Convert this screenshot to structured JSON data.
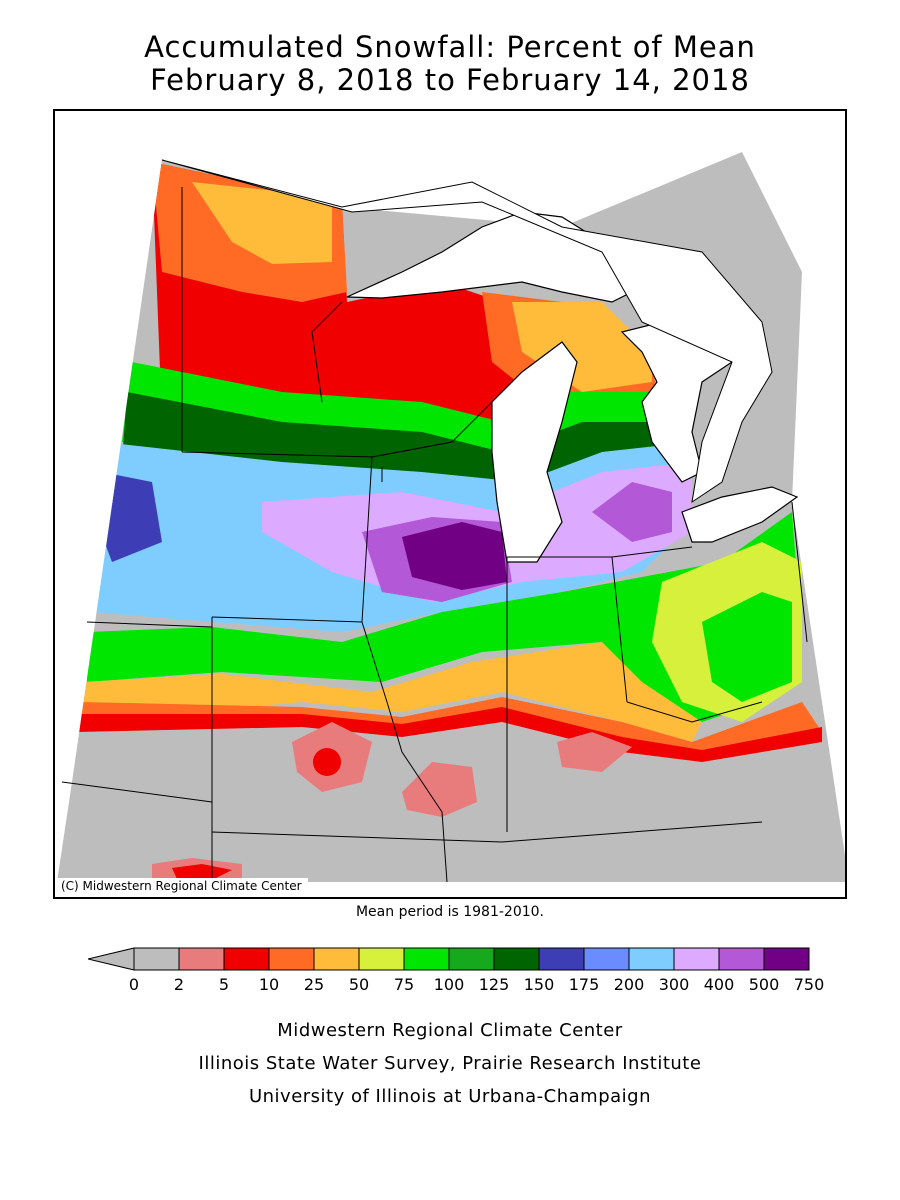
{
  "title": {
    "line1": "Accumulated Snowfall: Percent of Mean",
    "line2": "February 8, 2018 to February 14, 2018"
  },
  "map": {
    "credit": "(C) Midwestern Regional Climate Center",
    "mean_period": "Mean period is 1981-2010."
  },
  "legend": {
    "labels": [
      "0",
      "2",
      "5",
      "10",
      "25",
      "50",
      "75",
      "100",
      "125",
      "150",
      "175",
      "200",
      "300",
      "400",
      "500",
      "750"
    ],
    "colors": [
      "#bdbdbd",
      "#e87b7b",
      "#f00000",
      "#ff6a25",
      "#ffbb3a",
      "#d6f03c",
      "#00e600",
      "#16a91d",
      "#006400",
      "#3d3db6",
      "#6a8cff",
      "#7fcdff",
      "#dcaaff",
      "#b358d6",
      "#720085"
    ]
  },
  "footer": {
    "line1": "Midwestern Regional Climate Center",
    "line2": "Illinois State Water Survey, Prairie Research Institute",
    "line3": "University of Illinois at Urbana-Champaign"
  }
}
